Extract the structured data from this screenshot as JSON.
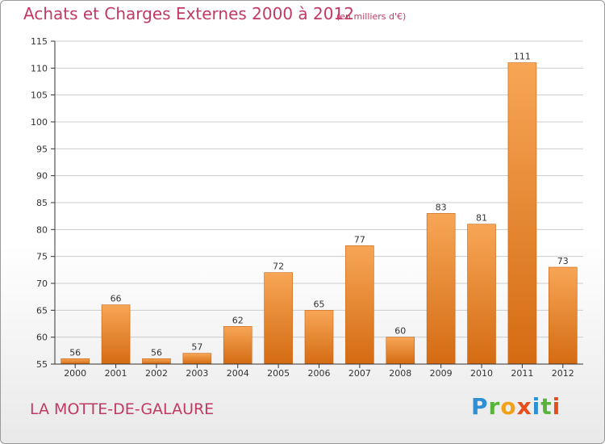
{
  "header": {
    "title": "Achats et Charges Externes 2000 à 2012",
    "subtitle": "(en milliers d'€)"
  },
  "footer": {
    "location": "LA MOTTE-DE-GALAURE",
    "logo": [
      "P",
      "r",
      "o",
      "x",
      "i",
      "t",
      "i"
    ]
  },
  "colors": {
    "bar_top": "#f7a656",
    "bar_bottom": "#d46b12",
    "title": "#c03a64"
  },
  "chart_data": {
    "type": "bar",
    "title": "Achats et Charges Externes 2000 à 2012",
    "subtitle": "(en milliers d'€)",
    "categories": [
      "2000",
      "2001",
      "2002",
      "2003",
      "2004",
      "2005",
      "2006",
      "2007",
      "2008",
      "2009",
      "2010",
      "2011",
      "2012"
    ],
    "values": [
      56,
      66,
      56,
      57,
      62,
      72,
      65,
      77,
      60,
      83,
      81,
      111,
      73
    ],
    "ylim": [
      55,
      115
    ],
    "yticks": [
      55,
      60,
      65,
      70,
      75,
      80,
      85,
      90,
      95,
      100,
      105,
      110,
      115
    ],
    "grid": true,
    "legend": "none"
  }
}
